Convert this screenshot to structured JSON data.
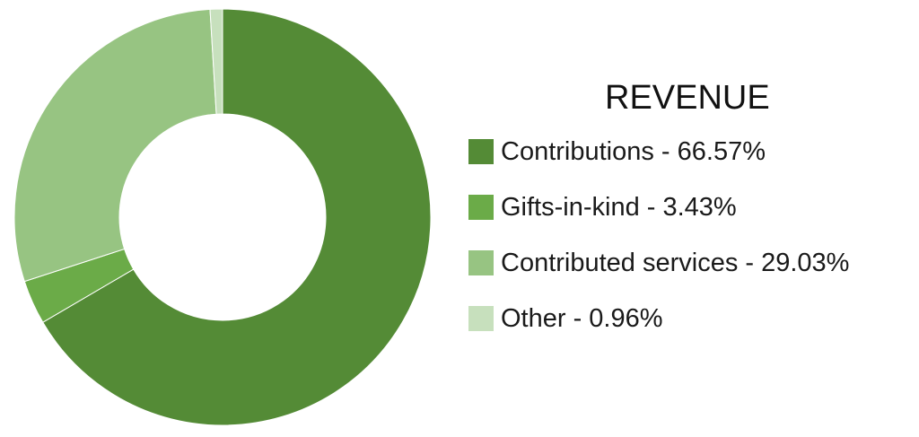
{
  "chart_data": {
    "type": "pie",
    "title": "REVENUE",
    "donut": true,
    "categories": [
      "Contributions",
      "Gifts-in-kind",
      "Contributed services",
      "Other"
    ],
    "values": [
      66.57,
      3.43,
      29.03,
      0.96
    ],
    "unit": "%",
    "colors": [
      "#548b36",
      "#6bab48",
      "#97c482",
      "#c7e0bd"
    ],
    "legend_labels": [
      "Contributions - 66.57%",
      "Gifts-in-kind - 3.43%",
      "Contributed services - 29.03%",
      "Other - 0.96%"
    ],
    "legend_position": "right"
  }
}
